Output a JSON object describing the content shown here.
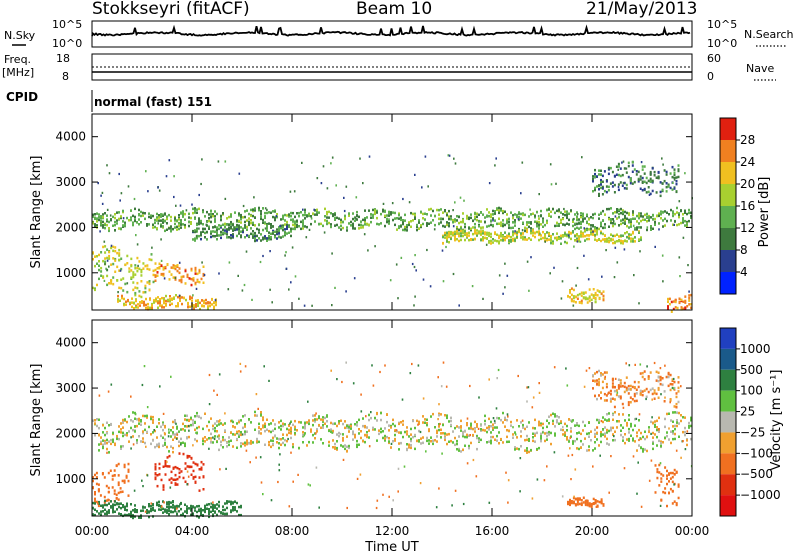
{
  "header": {
    "station": "Stokkseyri (fitACF)",
    "beam": "Beam 10",
    "date": "21/May/2013"
  },
  "strips": {
    "nsky_label": "N.Sky",
    "nsky_ticks": [
      "10^5",
      "10^0"
    ],
    "nsearch_label": "N.Search",
    "freq_label": "Freq.",
    "freq_unit": "[MHz]",
    "freq_ticks": [
      "18",
      "8"
    ],
    "nave_label": "Nave",
    "nave_ticks": [
      "60",
      "0"
    ],
    "cpid_label": "CPID",
    "cpid_value": "normal (fast) 151"
  },
  "axes": {
    "ylabel": "Slant Range [km]",
    "xlabel": "Time UT",
    "x_ticks": [
      "00:00",
      "04:00",
      "08:00",
      "12:00",
      "16:00",
      "20:00",
      "00:00"
    ],
    "y_ticks": [
      "4000",
      "3000",
      "2000",
      "1000"
    ]
  },
  "colorbars": {
    "power": {
      "label": "Power [dB]",
      "ticks": [
        "28",
        "24",
        "20",
        "16",
        "12",
        "8",
        "4"
      ],
      "colors": [
        "#0022ff",
        "#2a3f8f",
        "#3e7a3e",
        "#5fb050",
        "#a8d030",
        "#f0c020",
        "#f08020",
        "#e02010"
      ]
    },
    "velocity": {
      "label": "Velocity [m s⁻¹]",
      "ticks": [
        "1000",
        "500",
        "100",
        "25",
        "−25",
        "−100",
        "−500",
        "−1000"
      ],
      "colors": [
        "#2040c0",
        "#1a5a8a",
        "#2e8040",
        "#60c040",
        "#b8b8b0",
        "#f0a030",
        "#f07020",
        "#e03010",
        "#e01010"
      ]
    }
  },
  "chart_data": [
    {
      "type": "heatmap",
      "name": "power",
      "xlim": [
        0,
        24
      ],
      "ylim": [
        180,
        4500
      ],
      "zlim": [
        0,
        30
      ],
      "bands": [
        {
          "t": [
            0,
            24
          ],
          "range": [
            2000,
            2400
          ],
          "level": 12
        },
        {
          "t": [
            4,
            8
          ],
          "range": [
            1750,
            2050
          ],
          "level": 10
        },
        {
          "t": [
            14,
            22
          ],
          "range": [
            1700,
            1950
          ],
          "level": 18
        },
        {
          "t": [
            0,
            2.5
          ],
          "range": [
            600,
            1500
          ],
          "level": 18
        },
        {
          "t": [
            2.5,
            4.5
          ],
          "range": [
            800,
            1200
          ],
          "level": 24
        },
        {
          "t": [
            1,
            5
          ],
          "range": [
            250,
            500
          ],
          "level": 22
        },
        {
          "t": [
            19,
            20.5
          ],
          "range": [
            400,
            700
          ],
          "level": 20
        },
        {
          "t": [
            20,
            23.5
          ],
          "range": [
            2800,
            3400
          ],
          "level": 8
        },
        {
          "t": [
            23,
            24
          ],
          "range": [
            200,
            500
          ],
          "level": 26
        }
      ]
    },
    {
      "type": "heatmap",
      "name": "velocity",
      "xlim": [
        0,
        24
      ],
      "ylim": [
        180,
        4500
      ],
      "zlim": [
        -1000,
        1000
      ],
      "bands": [
        {
          "t": [
            0,
            24
          ],
          "range": [
            1700,
            2400
          ],
          "value": 0
        },
        {
          "t": [
            0,
            1.5
          ],
          "range": [
            500,
            1300
          ],
          "value": -400
        },
        {
          "t": [
            2.5,
            4.5
          ],
          "range": [
            800,
            1500
          ],
          "value": -600
        },
        {
          "t": [
            0,
            6
          ],
          "range": [
            200,
            500
          ],
          "value": 200
        },
        {
          "t": [
            19,
            20.5
          ],
          "range": [
            400,
            600
          ],
          "value": -300
        },
        {
          "t": [
            20,
            23.5
          ],
          "range": [
            2700,
            3400
          ],
          "value": -100
        },
        {
          "t": [
            22.5,
            23.5
          ],
          "range": [
            500,
            1400
          ],
          "value": -400
        }
      ]
    }
  ]
}
